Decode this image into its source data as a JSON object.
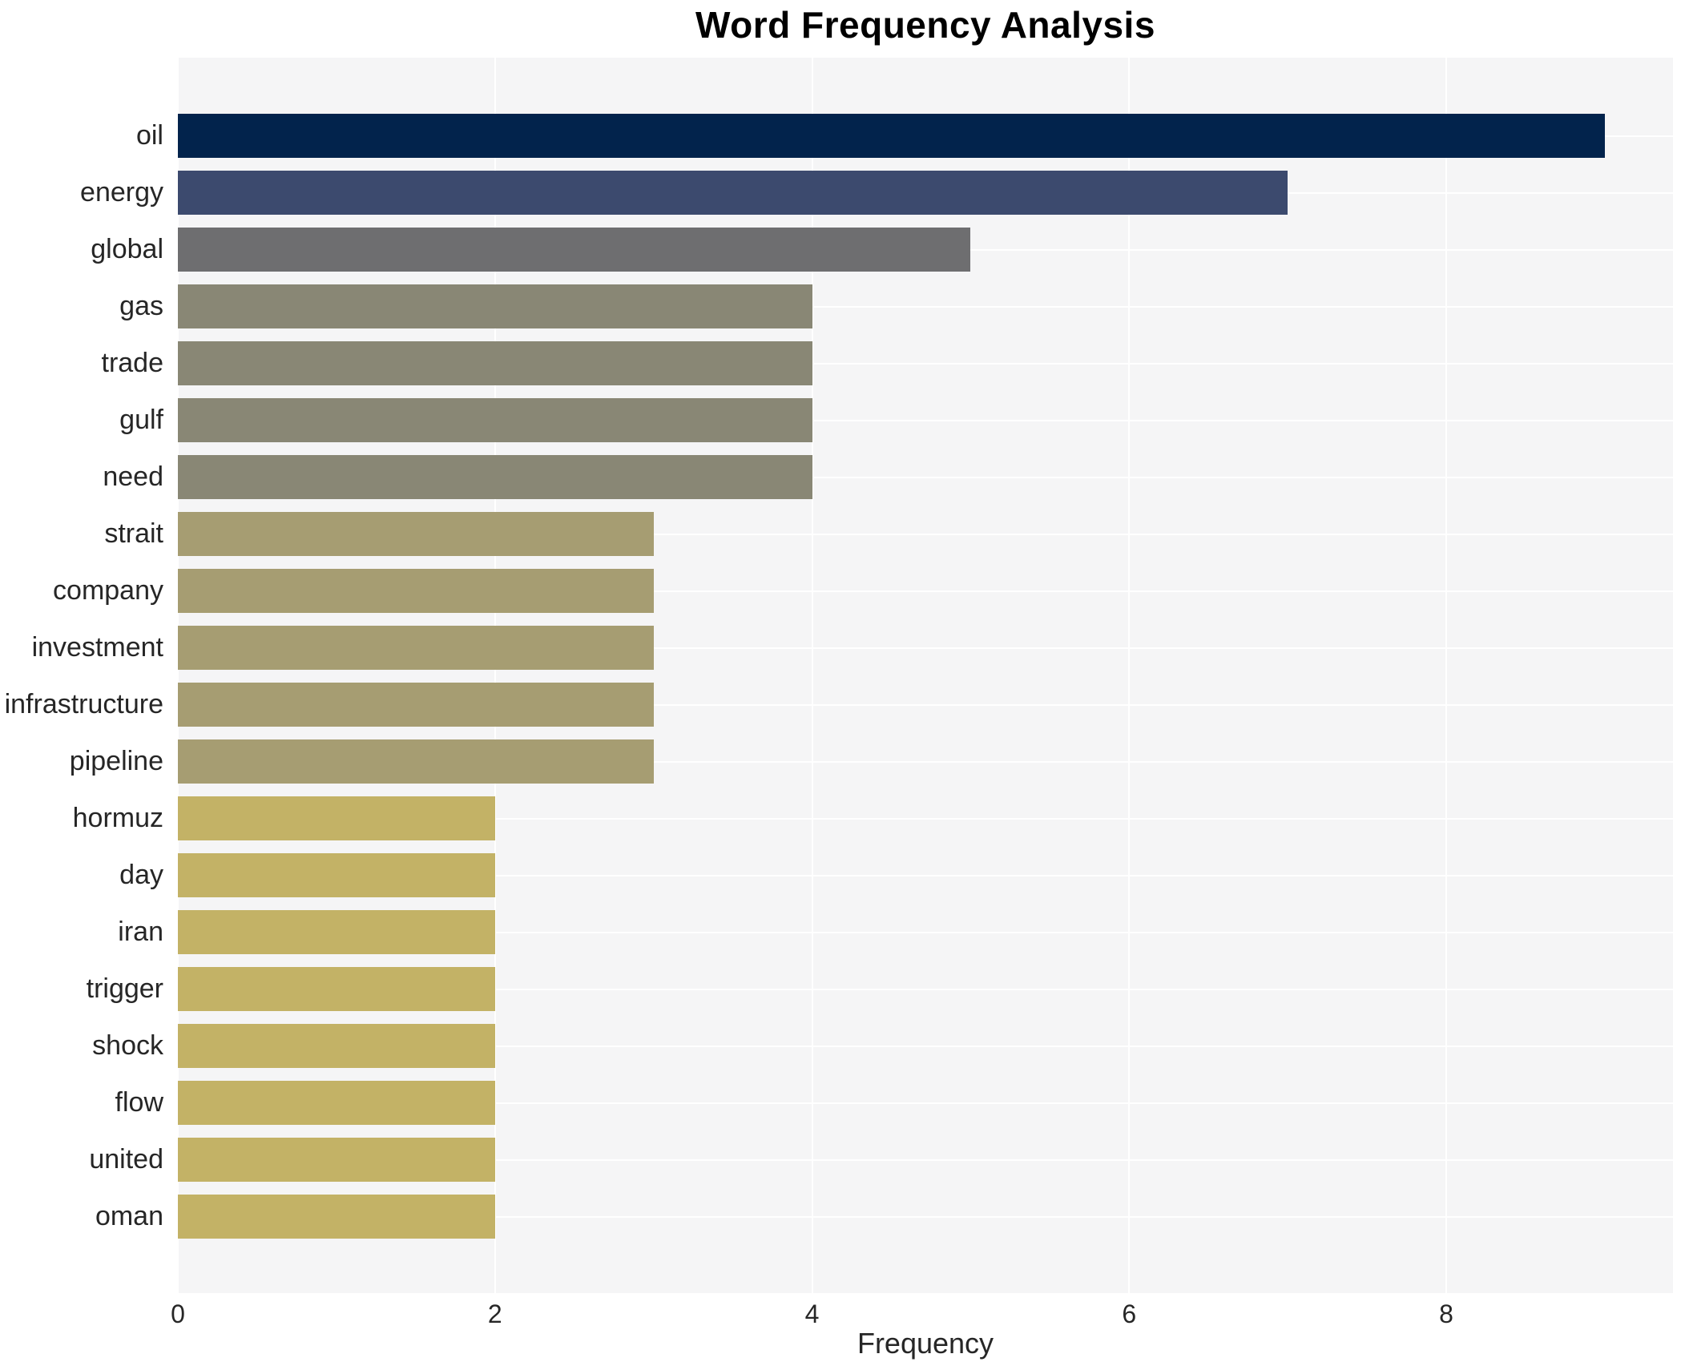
{
  "figure": {
    "title": "Word Frequency Analysis",
    "background_color": "#ffffff"
  },
  "chart_data": {
    "type": "bar",
    "orientation": "horizontal",
    "title": "Word Frequency Analysis",
    "xlabel": "Frequency",
    "ylabel": "",
    "categories": [
      "oil",
      "energy",
      "global",
      "gas",
      "trade",
      "gulf",
      "need",
      "strait",
      "company",
      "investment",
      "infrastructure",
      "pipeline",
      "hormuz",
      "day",
      "iran",
      "trigger",
      "shock",
      "flow",
      "united",
      "oman"
    ],
    "values": [
      9,
      7,
      5,
      4,
      4,
      4,
      4,
      3,
      3,
      3,
      3,
      3,
      2,
      2,
      2,
      2,
      2,
      2,
      2,
      2
    ],
    "bar_colors": [
      "#02234c",
      "#3c4a6e",
      "#6e6e70",
      "#898775",
      "#898775",
      "#898775",
      "#898775",
      "#a69d72",
      "#a69d72",
      "#a69d72",
      "#a69d72",
      "#a69d72",
      "#c3b266",
      "#c3b266",
      "#c3b266",
      "#c3b266",
      "#c3b266",
      "#c3b266",
      "#c3b266",
      "#c3b266"
    ],
    "xlim": [
      0,
      9.43
    ],
    "xticks": [
      0,
      2,
      4,
      6,
      8
    ],
    "legend": null,
    "grid": {
      "vertical_at_xticks": true,
      "horizontal_at_category_centers": true,
      "color": "#ffffff"
    },
    "plot_background": "#f5f5f6",
    "text_color": "#262626"
  }
}
